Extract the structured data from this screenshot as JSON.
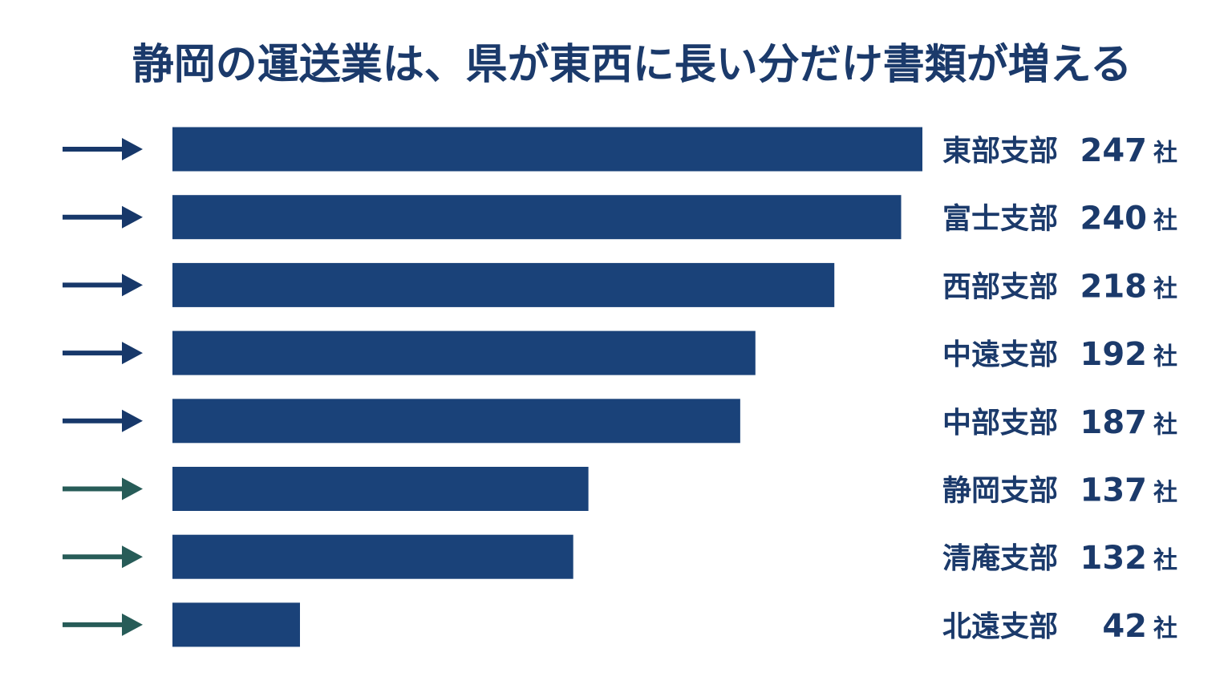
{
  "chart_data": {
    "type": "bar",
    "orientation": "horizontal",
    "title": "静岡の運送業は、県が東西に長い分だけ書類が増える",
    "categories": [
      "東部支部",
      "富士支部",
      "西部支部",
      "中遠支部",
      "中部支部",
      "静岡支部",
      "清庵支部",
      "北遠支部"
    ],
    "values": [
      247,
      240,
      218,
      192,
      187,
      137,
      132,
      42
    ],
    "unit": "社",
    "color": "#1a4279",
    "arrow_colors": [
      "#17386a",
      "#17386a",
      "#17386a",
      "#17386a",
      "#17386a",
      "#275c58",
      "#275c58",
      "#275c58"
    ]
  }
}
